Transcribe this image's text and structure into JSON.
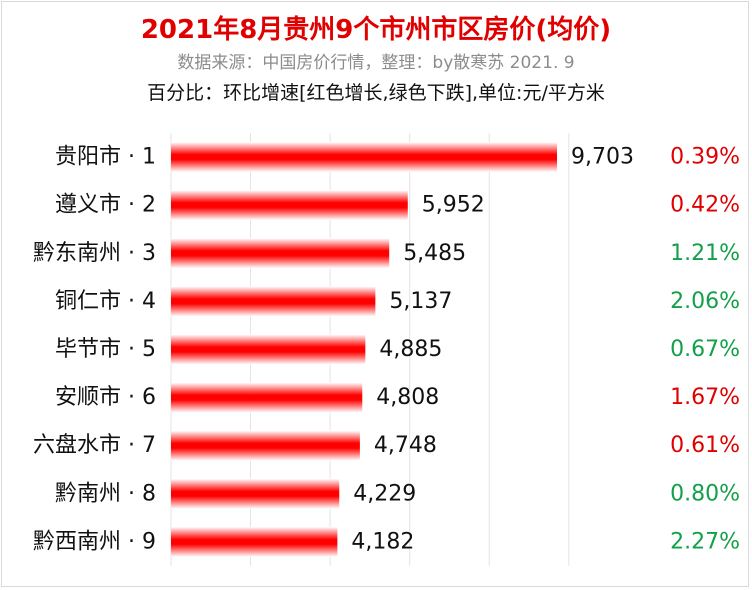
{
  "chart_data": {
    "type": "bar",
    "orientation": "horizontal",
    "title": "2021年8月贵州9个市州市区房价(均价)",
    "subtitle": "数据来源：中国房价行情，整理：by散寒苏  2021. 9",
    "note": "百分比：环比增速[红色增长,绿色下跌],单位:元/平方米",
    "categories": [
      "贵阳市 · 1",
      "遵义市 · 2",
      "黔东南州 · 3",
      "铜仁市 · 4",
      "毕节市 · 5",
      "安顺市 · 6",
      "六盘水市 · 7",
      "黔南州 · 8",
      "黔西南州 · 9"
    ],
    "values": [
      9703,
      5952,
      5485,
      5137,
      4885,
      4808,
      4748,
      4229,
      4182
    ],
    "value_labels": [
      "9,703",
      "5,952",
      "5,485",
      "5,137",
      "4,885",
      "4,808",
      "4,748",
      "4,229",
      "4,182"
    ],
    "changes": [
      "0.39%",
      "0.42%",
      "1.21%",
      "2.06%",
      "0.67%",
      "1.67%",
      "0.61%",
      "0.80%",
      "2.27%"
    ],
    "change_trend": [
      "up",
      "up",
      "down",
      "down",
      "down",
      "up",
      "up",
      "down",
      "down"
    ],
    "xlim": [
      0,
      10000
    ],
    "grid": "vertical",
    "colors": {
      "bar": "#ff0000",
      "up": "#e00000",
      "down": "#12a04a",
      "title": "#e00000",
      "subtitle": "#8c8c8c"
    }
  }
}
